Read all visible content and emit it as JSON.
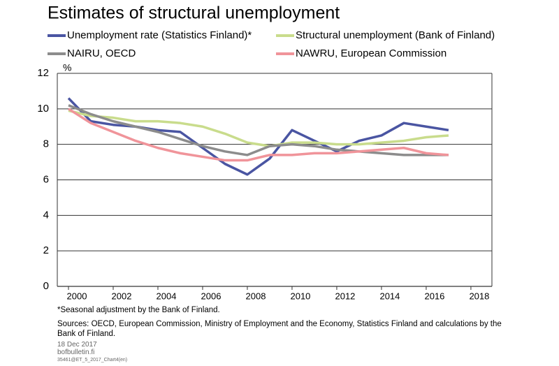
{
  "chart_data": {
    "type": "line",
    "title": "Estimates of structural unemployment",
    "y_label": "%",
    "x": [
      2000,
      2001,
      2002,
      2003,
      2004,
      2005,
      2006,
      2007,
      2008,
      2009,
      2010,
      2011,
      2012,
      2013,
      2014,
      2015,
      2016,
      2017
    ],
    "series": [
      {
        "name": "Unemployment rate (Statistics Finland)*",
        "color": "#4a55a2",
        "values": [
          10.6,
          9.3,
          9.1,
          9.0,
          8.8,
          8.7,
          7.8,
          6.9,
          6.3,
          7.2,
          8.8,
          8.2,
          7.6,
          8.2,
          8.5,
          9.2,
          9.0,
          8.8
        ]
      },
      {
        "name": "Structural unemployment (Bank of Finland)",
        "color": "#c9dc8c",
        "values": [
          9.9,
          9.6,
          9.5,
          9.3,
          9.3,
          9.2,
          9.0,
          8.6,
          8.1,
          7.9,
          8.1,
          8.1,
          8.0,
          8.0,
          8.1,
          8.2,
          8.4,
          8.5
        ]
      },
      {
        "name": "NAIRU, OECD",
        "color": "#8c8c8c",
        "values": [
          10.2,
          9.7,
          9.3,
          9.0,
          8.7,
          8.3,
          7.9,
          7.6,
          7.4,
          7.9,
          8.0,
          7.9,
          7.7,
          7.6,
          7.5,
          7.4,
          7.4,
          7.4
        ]
      },
      {
        "name": "NAWRU, European Commission",
        "color": "#f0949a",
        "values": [
          10.0,
          9.2,
          8.7,
          8.2,
          7.8,
          7.5,
          7.3,
          7.1,
          7.1,
          7.4,
          7.4,
          7.5,
          7.5,
          7.6,
          7.7,
          7.8,
          7.5,
          7.4
        ]
      }
    ],
    "xlim": [
      1999.5,
      2018.94
    ],
    "xticks": [
      2000,
      2002,
      2004,
      2006,
      2008,
      2010,
      2012,
      2014,
      2016,
      2018
    ],
    "ylim": [
      0,
      12
    ],
    "yticks": [
      0,
      2,
      4,
      6,
      8,
      10,
      12
    ],
    "grid": true,
    "footnote": "*Seasonal adjustment  by the Bank of Finland.",
    "sources": "Sources: OECD, European Commission, Ministry of Employment and the Economy, Statistics Finland and calculations by the Bank of Finland.",
    "date": "18 Dec 2017",
    "website": "bofbulletin.fi",
    "code": "35461@ET_5_2017_Chart4(en)"
  }
}
